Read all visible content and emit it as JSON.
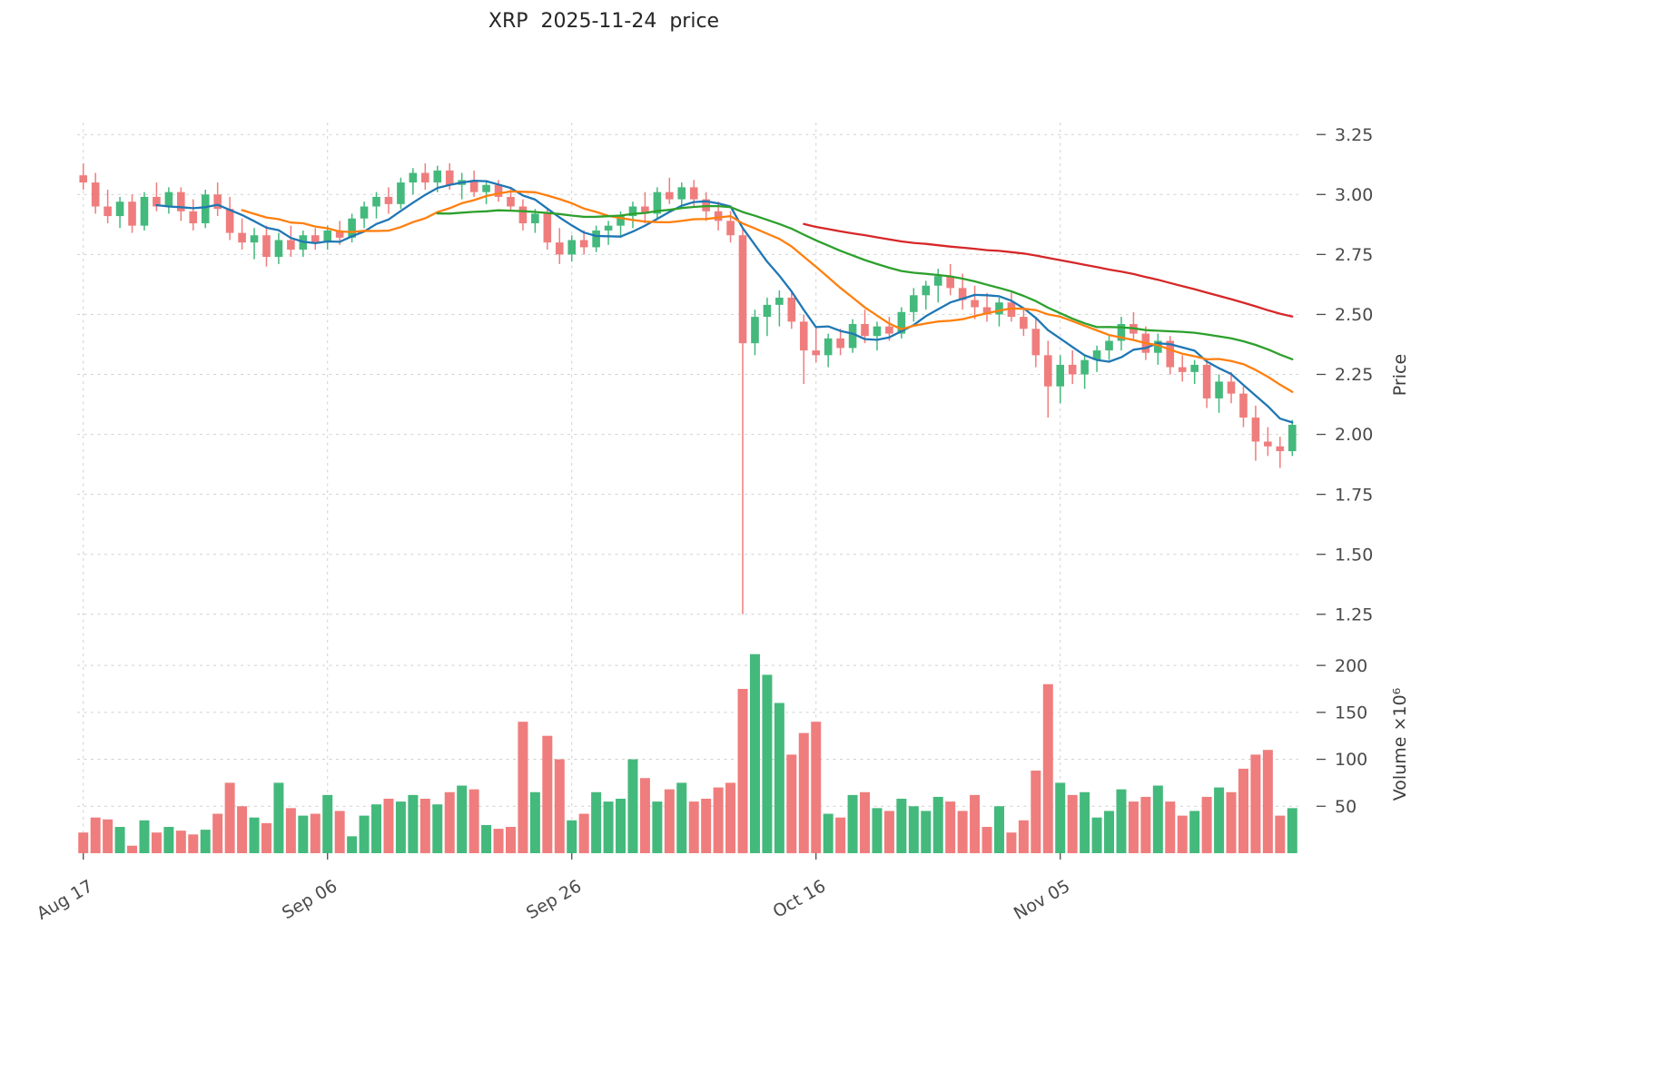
{
  "chart_data": {
    "type": "candlestick",
    "title": "XRP  2025-11-24  price",
    "ylabel": "Price",
    "ylabel2": "Volume ×10⁶",
    "ylim": [
      1.2,
      3.3
    ],
    "price_ticks": [
      1.25,
      1.5,
      1.75,
      2.0,
      2.25,
      2.5,
      2.75,
      3.0,
      3.25
    ],
    "volume_ticks": [
      50,
      100,
      150,
      200
    ],
    "volume_axis_max": 232,
    "grid": true,
    "up_color": "#44b97c",
    "down_color": "#ef7d7d",
    "mavs": [
      {
        "period": 7,
        "color": "#1f77b4"
      },
      {
        "period": 14,
        "color": "#ff7f0e"
      },
      {
        "period": 30,
        "color": "#2ca02c"
      },
      {
        "period": 60,
        "color": "#d62728"
      }
    ],
    "x_ticks": [
      {
        "index": 0,
        "label": "Aug 17"
      },
      {
        "index": 20,
        "label": "Sep 06"
      },
      {
        "index": 40,
        "label": "Sep 26"
      },
      {
        "index": 60,
        "label": "Oct 16"
      },
      {
        "index": 80,
        "label": "Nov 05"
      }
    ],
    "dates": [
      "2025-08-17",
      "2025-08-18",
      "2025-08-19",
      "2025-08-20",
      "2025-08-21",
      "2025-08-22",
      "2025-08-23",
      "2025-08-24",
      "2025-08-25",
      "2025-08-26",
      "2025-08-27",
      "2025-08-28",
      "2025-08-29",
      "2025-08-30",
      "2025-08-31",
      "2025-09-01",
      "2025-09-02",
      "2025-09-03",
      "2025-09-04",
      "2025-09-05",
      "2025-09-06",
      "2025-09-07",
      "2025-09-08",
      "2025-09-09",
      "2025-09-10",
      "2025-09-11",
      "2025-09-12",
      "2025-09-13",
      "2025-09-14",
      "2025-09-15",
      "2025-09-16",
      "2025-09-17",
      "2025-09-18",
      "2025-09-19",
      "2025-09-20",
      "2025-09-21",
      "2025-09-22",
      "2025-09-23",
      "2025-09-24",
      "2025-09-25",
      "2025-09-26",
      "2025-09-27",
      "2025-09-28",
      "2025-09-29",
      "2025-09-30",
      "2025-10-01",
      "2025-10-02",
      "2025-10-03",
      "2025-10-04",
      "2025-10-05",
      "2025-10-06",
      "2025-10-07",
      "2025-10-08",
      "2025-10-09",
      "2025-10-10",
      "2025-10-11",
      "2025-10-12",
      "2025-10-13",
      "2025-10-14",
      "2025-10-15",
      "2025-10-16",
      "2025-10-17",
      "2025-10-18",
      "2025-10-19",
      "2025-10-20",
      "2025-10-21",
      "2025-10-22",
      "2025-10-23",
      "2025-10-24",
      "2025-10-25",
      "2025-10-26",
      "2025-10-27",
      "2025-10-28",
      "2025-10-29",
      "2025-10-30",
      "2025-10-31",
      "2025-11-01",
      "2025-11-02",
      "2025-11-03",
      "2025-11-04",
      "2025-11-05",
      "2025-11-06",
      "2025-11-07",
      "2025-11-08",
      "2025-11-09",
      "2025-11-10",
      "2025-11-11",
      "2025-11-12",
      "2025-11-13",
      "2025-11-14",
      "2025-11-15",
      "2025-11-16",
      "2025-11-17",
      "2025-11-18",
      "2025-11-19",
      "2025-11-20",
      "2025-11-21",
      "2025-11-22",
      "2025-11-23",
      "2025-11-24"
    ],
    "ohlc": {
      "open": [
        3.08,
        3.05,
        2.95,
        2.91,
        2.97,
        2.87,
        2.99,
        2.95,
        3.01,
        2.93,
        2.88,
        3.0,
        2.94,
        2.84,
        2.8,
        2.83,
        2.74,
        2.81,
        2.77,
        2.83,
        2.8,
        2.85,
        2.82,
        2.9,
        2.95,
        2.99,
        2.96,
        3.05,
        3.09,
        3.05,
        3.1,
        3.04,
        3.06,
        3.01,
        3.04,
        2.99,
        2.95,
        2.88,
        2.92,
        2.8,
        2.75,
        2.81,
        2.78,
        2.85,
        2.87,
        2.91,
        2.95,
        2.92,
        3.01,
        2.98,
        3.03,
        2.98,
        2.93,
        2.89,
        2.83,
        2.38,
        2.49,
        2.54,
        2.57,
        2.47,
        2.35,
        2.33,
        2.4,
        2.36,
        2.46,
        2.41,
        2.45,
        2.42,
        2.51,
        2.58,
        2.62,
        2.66,
        2.61,
        2.56,
        2.53,
        2.5,
        2.55,
        2.49,
        2.44,
        2.33,
        2.2,
        2.29,
        2.25,
        2.31,
        2.35,
        2.39,
        2.46,
        2.42,
        2.34,
        2.39,
        2.28,
        2.26,
        2.29,
        2.15,
        2.22,
        2.17,
        2.07,
        1.97,
        1.95,
        1.93
      ],
      "high": [
        3.13,
        3.09,
        3.02,
        2.99,
        3.0,
        3.01,
        3.05,
        3.03,
        3.03,
        2.98,
        3.02,
        3.05,
        2.99,
        2.9,
        2.86,
        2.87,
        2.84,
        2.87,
        2.85,
        2.86,
        2.87,
        2.89,
        2.92,
        2.97,
        3.01,
        3.03,
        3.07,
        3.11,
        3.13,
        3.12,
        3.13,
        3.09,
        3.1,
        3.06,
        3.06,
        3.03,
        2.98,
        2.94,
        2.94,
        2.86,
        2.83,
        2.85,
        2.87,
        2.89,
        2.93,
        2.97,
        3.01,
        3.03,
        3.07,
        3.05,
        3.06,
        3.01,
        2.97,
        2.93,
        2.86,
        2.52,
        2.57,
        2.6,
        2.59,
        2.5,
        2.45,
        2.42,
        2.44,
        2.48,
        2.52,
        2.47,
        2.49,
        2.53,
        2.61,
        2.64,
        2.69,
        2.71,
        2.67,
        2.62,
        2.59,
        2.57,
        2.59,
        2.53,
        2.49,
        2.39,
        2.33,
        2.35,
        2.33,
        2.37,
        2.41,
        2.49,
        2.51,
        2.45,
        2.42,
        2.41,
        2.33,
        2.31,
        2.31,
        2.25,
        2.26,
        2.2,
        2.12,
        2.03,
        1.99,
        2.06
      ],
      "low": [
        3.02,
        2.92,
        2.88,
        2.86,
        2.84,
        2.85,
        2.93,
        2.92,
        2.89,
        2.85,
        2.86,
        2.91,
        2.81,
        2.77,
        2.73,
        2.7,
        2.71,
        2.74,
        2.74,
        2.77,
        2.77,
        2.79,
        2.8,
        2.86,
        2.9,
        2.92,
        2.94,
        3.0,
        3.02,
        3.01,
        3.02,
        2.98,
        2.99,
        2.96,
        2.97,
        2.93,
        2.85,
        2.84,
        2.77,
        2.71,
        2.72,
        2.75,
        2.76,
        2.79,
        2.82,
        2.86,
        2.88,
        2.9,
        2.96,
        2.95,
        2.95,
        2.89,
        2.85,
        2.8,
        1.25,
        2.33,
        2.41,
        2.45,
        2.44,
        2.21,
        2.3,
        2.28,
        2.33,
        2.34,
        2.38,
        2.35,
        2.39,
        2.4,
        2.47,
        2.52,
        2.55,
        2.58,
        2.52,
        2.48,
        2.47,
        2.45,
        2.47,
        2.41,
        2.28,
        2.07,
        2.13,
        2.21,
        2.19,
        2.26,
        2.31,
        2.35,
        2.39,
        2.31,
        2.29,
        2.25,
        2.22,
        2.21,
        2.11,
        2.09,
        2.13,
        2.03,
        1.89,
        1.91,
        1.86,
        1.91
      ],
      "close": [
        3.05,
        2.95,
        2.91,
        2.97,
        2.87,
        2.99,
        2.95,
        3.01,
        2.93,
        2.88,
        3.0,
        2.94,
        2.84,
        2.8,
        2.83,
        2.74,
        2.81,
        2.77,
        2.83,
        2.8,
        2.85,
        2.82,
        2.9,
        2.95,
        2.99,
        2.96,
        3.05,
        3.09,
        3.05,
        3.1,
        3.04,
        3.06,
        3.01,
        3.04,
        2.99,
        2.95,
        2.88,
        2.92,
        2.8,
        2.75,
        2.81,
        2.78,
        2.85,
        2.87,
        2.91,
        2.95,
        2.92,
        3.01,
        2.98,
        3.03,
        2.98,
        2.93,
        2.89,
        2.83,
        2.38,
        2.49,
        2.54,
        2.57,
        2.47,
        2.35,
        2.33,
        2.4,
        2.36,
        2.46,
        2.41,
        2.45,
        2.42,
        2.51,
        2.58,
        2.62,
        2.66,
        2.61,
        2.56,
        2.53,
        2.5,
        2.55,
        2.49,
        2.44,
        2.33,
        2.2,
        2.29,
        2.25,
        2.31,
        2.35,
        2.39,
        2.46,
        2.42,
        2.34,
        2.39,
        2.28,
        2.26,
        2.29,
        2.15,
        2.22,
        2.17,
        2.07,
        1.97,
        1.95,
        1.93,
        2.04
      ]
    },
    "volume_millions": [
      22,
      38,
      36,
      28,
      8,
      35,
      22,
      28,
      24,
      20,
      25,
      42,
      75,
      50,
      38,
      32,
      75,
      48,
      40,
      42,
      62,
      45,
      18,
      40,
      52,
      58,
      55,
      62,
      58,
      52,
      65,
      72,
      68,
      30,
      26,
      28,
      140,
      65,
      125,
      100,
      35,
      42,
      65,
      55,
      58,
      100,
      80,
      55,
      68,
      75,
      55,
      58,
      70,
      75,
      175,
      212,
      190,
      160,
      105,
      128,
      140,
      42,
      38,
      62,
      65,
      48,
      45,
      58,
      50,
      45,
      60,
      55,
      45,
      62,
      28,
      50,
      22,
      35,
      88,
      180,
      75,
      62,
      65,
      38,
      45,
      68,
      55,
      60,
      72,
      55,
      40,
      45,
      60,
      70,
      65,
      90,
      105,
      110,
      40,
      48
    ]
  }
}
